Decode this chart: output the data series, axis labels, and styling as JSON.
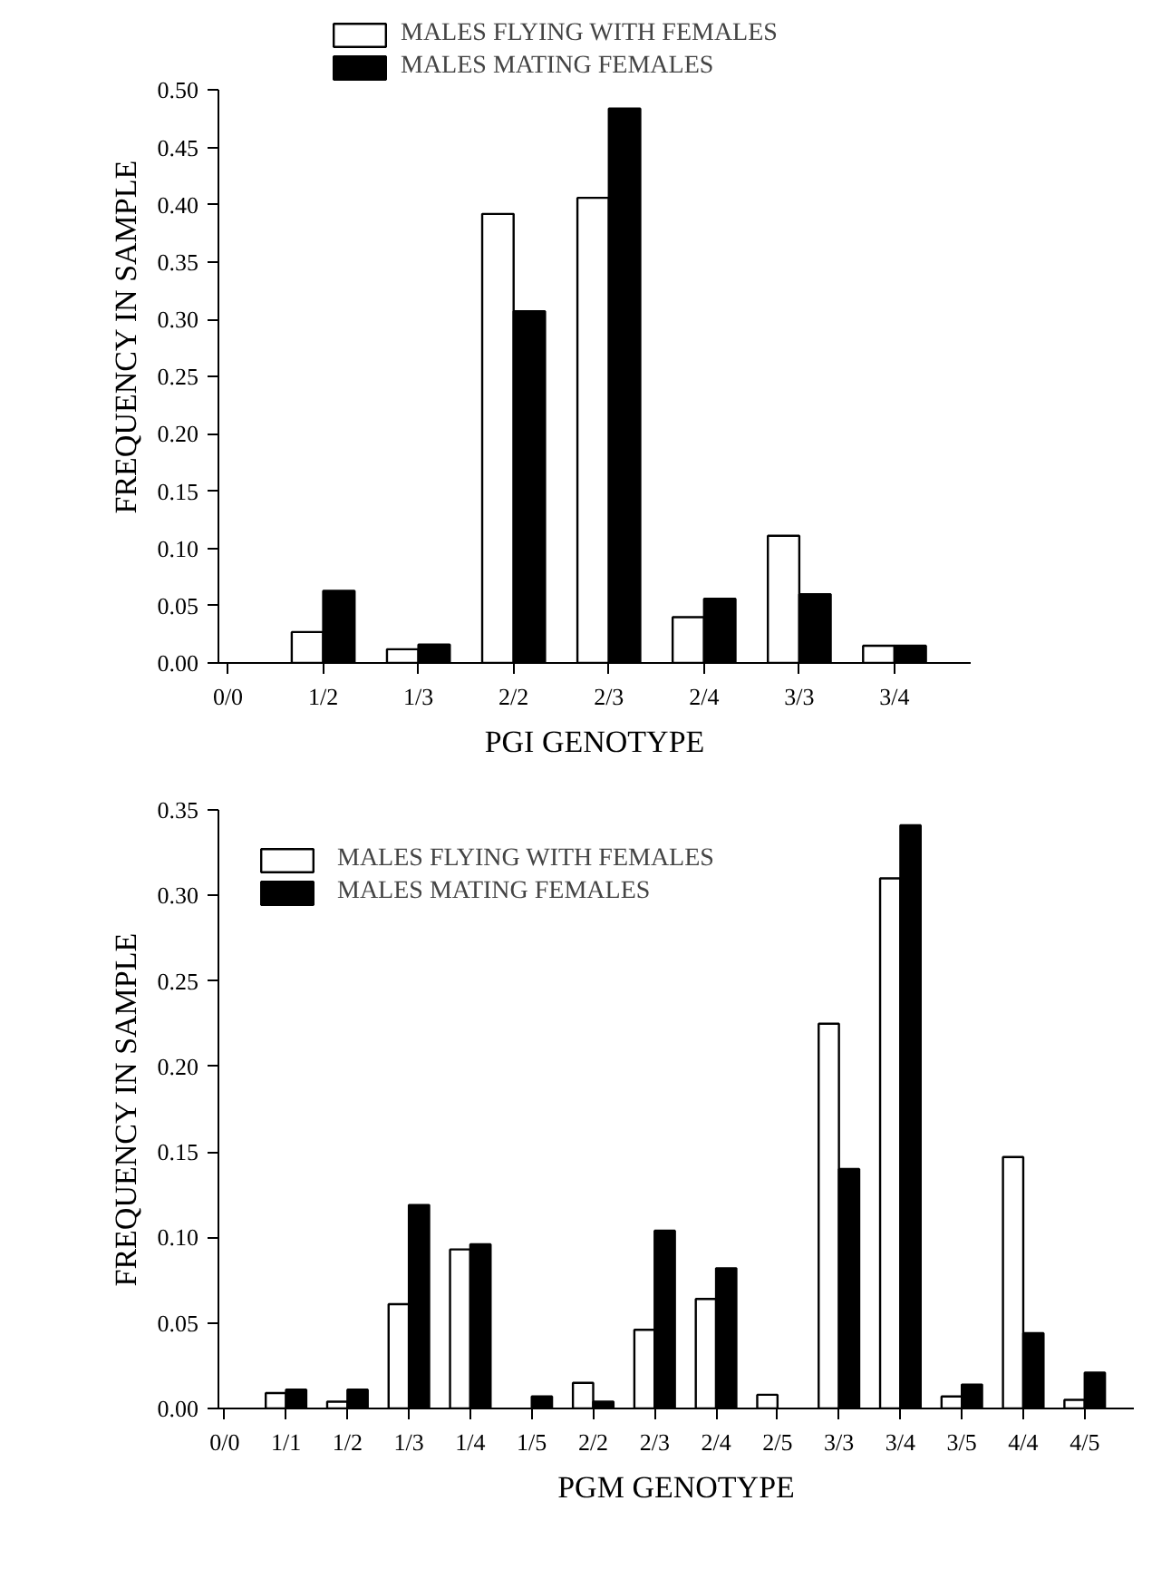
{
  "chart_data": [
    {
      "type": "bar",
      "xlabel": "PGI GENOTYPE",
      "ylabel": "FREQUENCY IN SAMPLE",
      "categories": [
        "0/0",
        "1/2",
        "1/3",
        "2/2",
        "2/3",
        "2/4",
        "3/3",
        "3/4"
      ],
      "series": [
        {
          "name": "MALES FLYING WITH FEMALES",
          "color": "#ffffff",
          "values": [
            null,
            0.027,
            0.012,
            0.392,
            0.406,
            0.04,
            0.111,
            0.015
          ]
        },
        {
          "name": "MALES MATING FEMALES",
          "color": "#000000",
          "values": [
            null,
            0.063,
            0.016,
            0.307,
            0.484,
            0.056,
            0.06,
            0.015
          ]
        }
      ],
      "ylim": [
        0,
        0.5
      ],
      "yticks": [
        {
          "value": 0,
          "label": "0.00"
        },
        {
          "value": 0.05,
          "label": "0.05"
        },
        {
          "value": 0.1,
          "label": "0.10"
        },
        {
          "value": 0.15,
          "label": "0.15"
        },
        {
          "value": 0.2,
          "label": "0.20"
        },
        {
          "value": 0.25,
          "label": "0.25"
        },
        {
          "value": 0.3,
          "label": "0.30"
        },
        {
          "value": 0.35,
          "label": "0.35"
        },
        {
          "value": 0.4,
          "label": "0.40"
        },
        {
          "value": 0.45,
          "label": "0.45"
        },
        {
          "value": 0.5,
          "label": "0.50"
        }
      ],
      "grid": false,
      "legend": "top"
    },
    {
      "type": "bar",
      "xlabel": "PGM GENOTYPE",
      "ylabel": "FREQUENCY IN SAMPLE",
      "categories": [
        "0/0",
        "1/1",
        "1/2",
        "1/3",
        "1/4",
        "1/5",
        "2/2",
        "2/3",
        "2/4",
        "2/5",
        "3/3",
        "3/4",
        "3/5",
        "4/4",
        "4/5"
      ],
      "series": [
        {
          "name": "MALES FLYING WITH FEMALES",
          "color": "#ffffff",
          "values": [
            null,
            0.009,
            0.004,
            0.061,
            0.093,
            null,
            0.015,
            0.046,
            0.064,
            0.008,
            0.225,
            0.31,
            0.007,
            0.147,
            0.005
          ]
        },
        {
          "name": "MALES MATING FEMALES",
          "color": "#000000",
          "values": [
            null,
            0.011,
            0.011,
            0.119,
            0.096,
            0.007,
            0.004,
            0.104,
            0.082,
            null,
            0.14,
            0.341,
            0.014,
            0.044,
            0.021
          ]
        }
      ],
      "ylim": [
        0,
        0.35
      ],
      "yticks": [
        {
          "value": 0,
          "label": "0.00"
        },
        {
          "value": 0.05,
          "label": "0.05"
        },
        {
          "value": 0.1,
          "label": "0.10"
        },
        {
          "value": 0.15,
          "label": "0.15"
        },
        {
          "value": 0.2,
          "label": "0.20"
        },
        {
          "value": 0.25,
          "label": "0.25"
        },
        {
          "value": 0.3,
          "label": "0.30"
        },
        {
          "value": 0.35,
          "label": "0.35"
        }
      ],
      "grid": false,
      "legend": "top left"
    }
  ]
}
